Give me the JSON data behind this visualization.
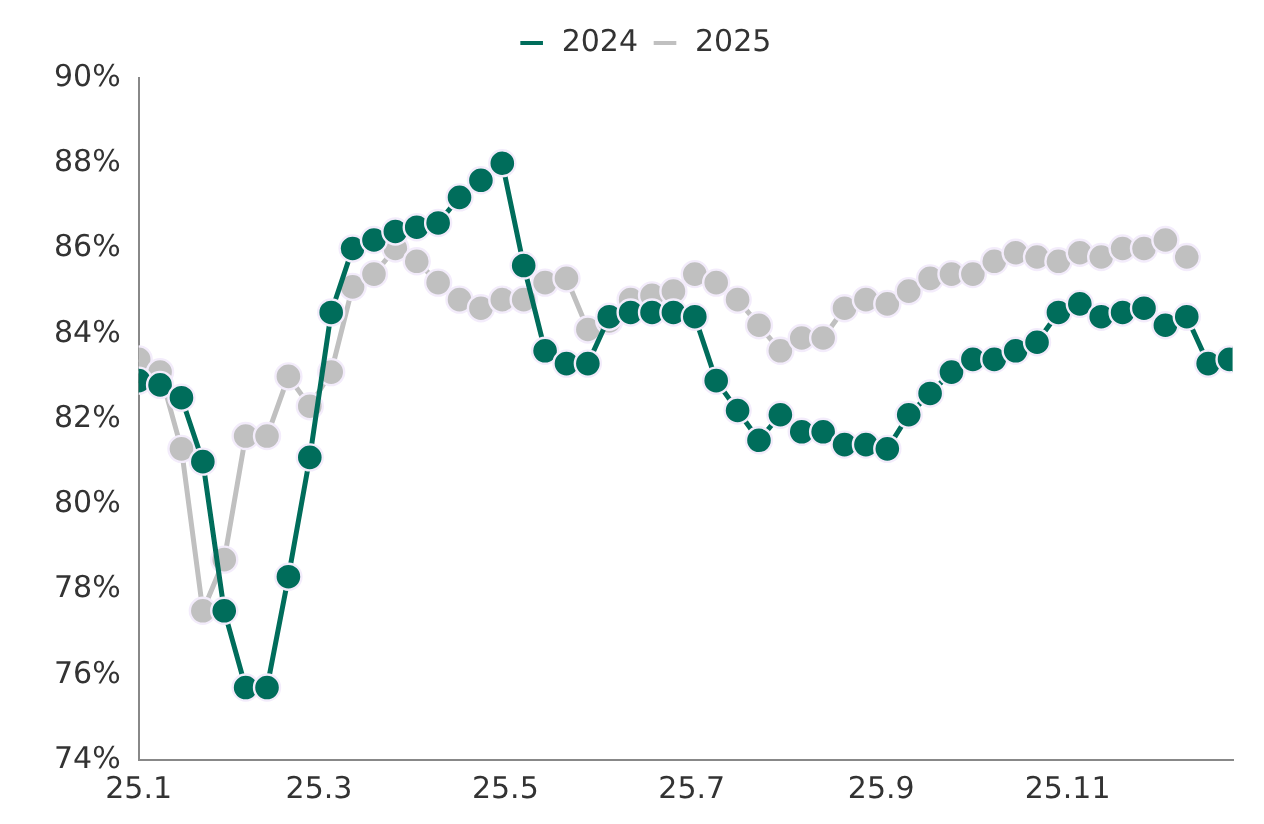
{
  "chart_data": {
    "type": "line",
    "x": [
      "2025-01-01",
      "2025-01-08",
      "2025-01-15",
      "2025-01-22",
      "2025-01-29",
      "2025-02-05",
      "2025-02-12",
      "2025-02-19",
      "2025-02-26",
      "2025-03-05",
      "2025-03-12",
      "2025-03-19",
      "2025-03-26",
      "2025-04-02",
      "2025-04-09",
      "2025-04-16",
      "2025-04-23",
      "2025-04-30",
      "2025-05-07",
      "2025-05-14",
      "2025-05-21",
      "2025-05-28",
      "2025-06-04",
      "2025-06-11",
      "2025-06-18",
      "2025-06-25",
      "2025-07-02",
      "2025-07-09",
      "2025-07-16",
      "2025-07-23",
      "2025-07-30",
      "2025-08-06",
      "2025-08-13",
      "2025-08-20",
      "2025-08-27",
      "2025-09-03",
      "2025-09-10",
      "2025-09-17",
      "2025-09-24",
      "2025-10-01",
      "2025-10-08",
      "2025-10-15",
      "2025-10-22",
      "2025-10-29",
      "2025-11-05",
      "2025-11-12",
      "2025-11-19",
      "2025-11-26",
      "2025-12-03",
      "2025-12-10",
      "2025-12-17",
      "2025-12-24"
    ],
    "series": [
      {
        "name": "2024",
        "color": "#006d5b",
        "values": [
          82.9,
          82.8,
          82.5,
          81.0,
          77.5,
          75.7,
          75.7,
          78.3,
          81.1,
          84.5,
          86.0,
          86.2,
          86.4,
          86.5,
          86.6,
          87.2,
          87.6,
          88.0,
          85.6,
          83.6,
          83.3,
          83.3,
          84.4,
          84.5,
          84.5,
          84.5,
          84.4,
          82.9,
          82.2,
          81.5,
          82.1,
          81.7,
          81.7,
          81.4,
          81.4,
          81.3,
          82.1,
          82.6,
          83.1,
          83.4,
          83.4,
          83.6,
          83.8,
          84.5,
          84.7,
          84.4,
          84.5,
          84.6,
          84.2,
          84.4,
          83.3,
          83.4
        ]
      },
      {
        "name": "2025",
        "color": "#c0c0c0",
        "values": [
          83.4,
          83.1,
          81.3,
          77.5,
          78.7,
          81.6,
          81.6,
          83.0,
          82.3,
          83.1,
          85.1,
          85.4,
          86.0,
          85.7,
          85.2,
          84.8,
          84.6,
          84.8,
          84.8,
          85.2,
          85.3,
          84.1,
          84.3,
          84.8,
          84.9,
          85.0,
          85.4,
          85.2,
          84.8,
          84.2,
          83.6,
          83.9,
          83.9,
          84.6,
          84.8,
          84.7,
          85.0,
          85.3,
          85.4,
          85.4,
          85.7,
          85.9,
          85.8,
          85.7,
          85.9,
          85.8,
          86.0,
          86.0,
          86.2,
          85.8,
          null,
          null
        ]
      }
    ],
    "xlim": [
      "2025-01-01",
      "2025-12-25"
    ],
    "xticks": [
      {
        "value": "2025-01-01",
        "label": "25.1"
      },
      {
        "value": "2025-03-01",
        "label": "25.3"
      },
      {
        "value": "2025-05-01",
        "label": "25.5"
      },
      {
        "value": "2025-07-01",
        "label": "25.7"
      },
      {
        "value": "2025-09-01",
        "label": "25.9"
      },
      {
        "value": "2025-11-01",
        "label": "25.11"
      }
    ],
    "ylim": [
      74,
      90
    ],
    "yticks": [
      {
        "value": 74,
        "label": "74%"
      },
      {
        "value": 76,
        "label": "76%"
      },
      {
        "value": 78,
        "label": "78%"
      },
      {
        "value": 80,
        "label": "80%"
      },
      {
        "value": 82,
        "label": "82%"
      },
      {
        "value": 84,
        "label": "84%"
      },
      {
        "value": 86,
        "label": "86%"
      },
      {
        "value": 88,
        "label": "88%"
      },
      {
        "value": 90,
        "label": "90%"
      }
    ],
    "grid": false,
    "legend": "top",
    "marker": "circle",
    "line_style": "solid"
  }
}
